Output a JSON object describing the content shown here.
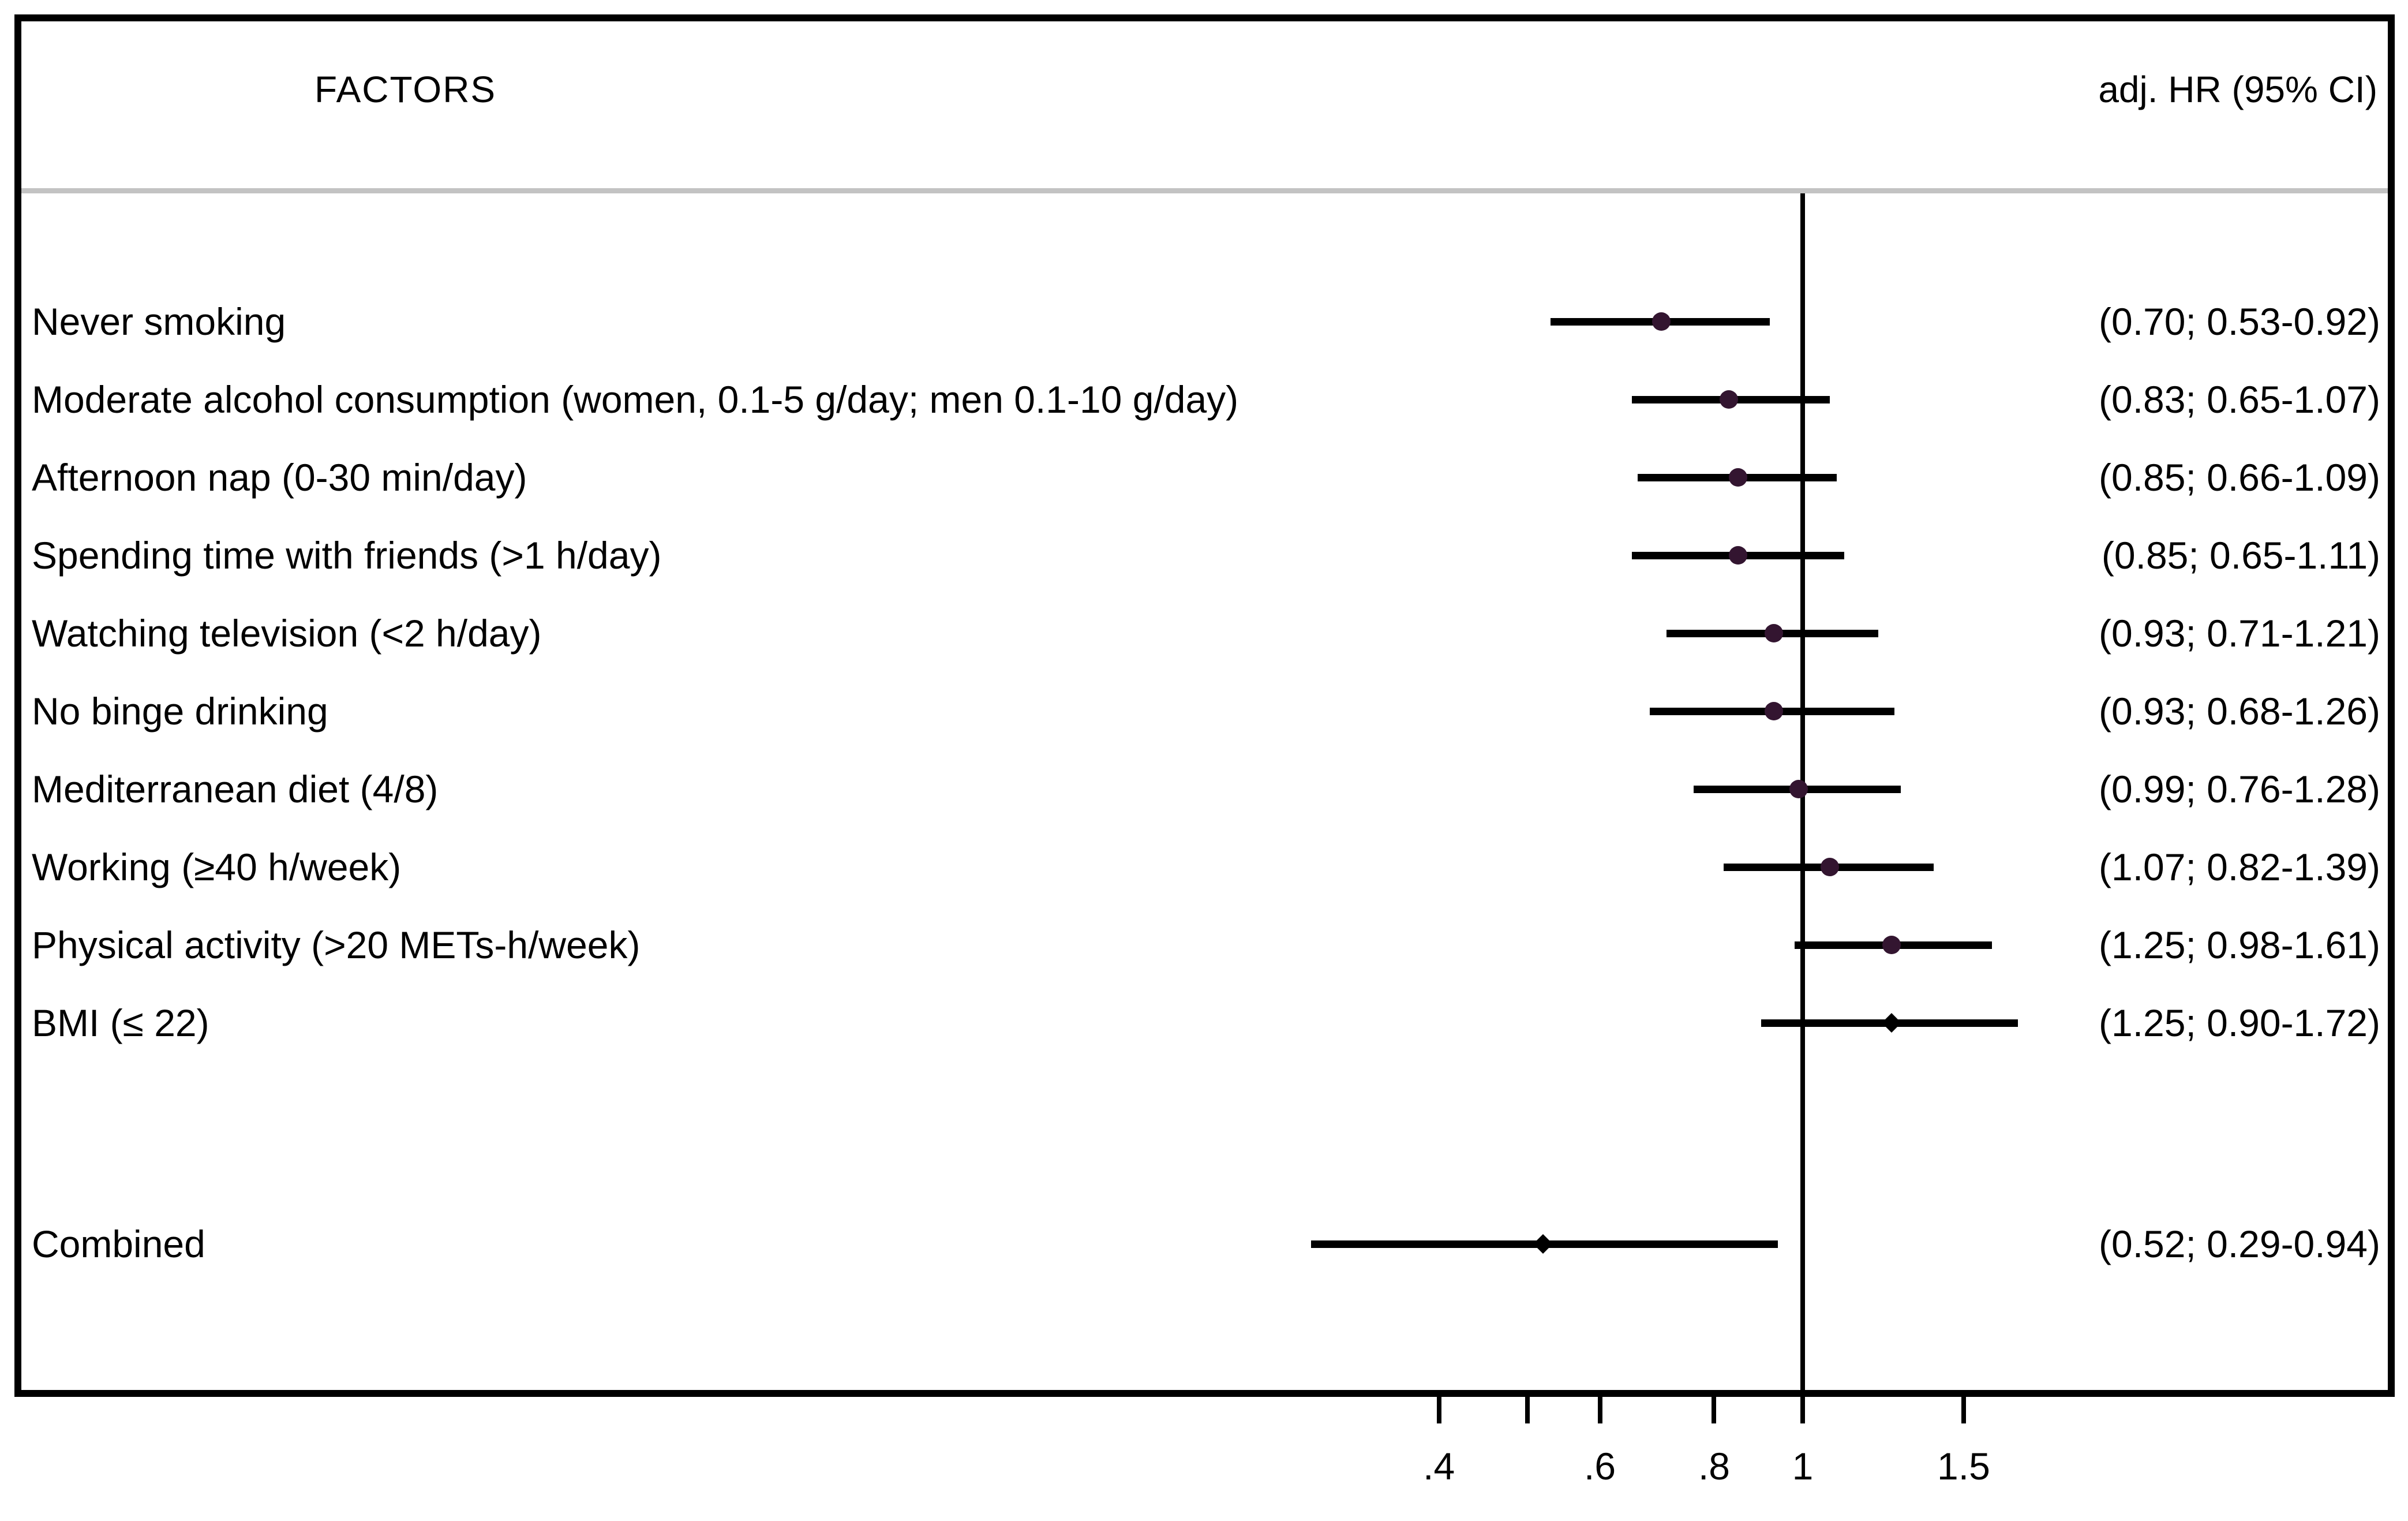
{
  "figure": {
    "header_left": "FACTORS",
    "header_right": "adj. HR (95% CI)"
  },
  "colors": {
    "background": "#ffffff",
    "frame_border": "#000000",
    "header_separator": "#c3c3c3",
    "text": "#000000",
    "ci_line": "#000000",
    "ref_line": "#000000",
    "marker_dot": "#331530",
    "marker_diamond": "#000000"
  },
  "chart_data": {
    "type": "forest",
    "x_scale": "log10",
    "x_axis": {
      "ref_value": 1,
      "ticks": [
        {
          "value": 0.4,
          "label": ".4"
        },
        {
          "value": 0.5,
          "label": ""
        },
        {
          "value": 0.6,
          "label": ".6"
        },
        {
          "value": 0.8,
          "label": ".8"
        },
        {
          "value": 1.0,
          "label": "1"
        },
        {
          "value": 1.5,
          "label": "1.5"
        }
      ]
    },
    "rows": [
      {
        "label": "Never smoking",
        "hr": 0.7,
        "ci_low": 0.53,
        "ci_high": 0.92,
        "ci_text": "(0.70; 0.53-0.92)",
        "marker": "dot"
      },
      {
        "label": "Moderate alcohol consumption (women, 0.1-5 g/day; men 0.1-10 g/day)",
        "hr": 0.83,
        "ci_low": 0.65,
        "ci_high": 1.07,
        "ci_text": "(0.83; 0.65-1.07)",
        "marker": "dot"
      },
      {
        "label": "Afternoon nap (0-30 min/day)",
        "hr": 0.85,
        "ci_low": 0.66,
        "ci_high": 1.09,
        "ci_text": "(0.85; 0.66-1.09)",
        "marker": "dot"
      },
      {
        "label": "Spending time with friends (>1 h/day)",
        "hr": 0.85,
        "ci_low": 0.65,
        "ci_high": 1.11,
        "ci_text": "(0.85; 0.65-1.11)",
        "marker": "dot"
      },
      {
        "label": "Watching television (<2 h/day)",
        "hr": 0.93,
        "ci_low": 0.71,
        "ci_high": 1.21,
        "ci_text": "(0.93; 0.71-1.21)",
        "marker": "dot"
      },
      {
        "label": "No binge drinking",
        "hr": 0.93,
        "ci_low": 0.68,
        "ci_high": 1.26,
        "ci_text": "(0.93; 0.68-1.26)",
        "marker": "dot"
      },
      {
        "label": "Mediterranean diet (4/8)",
        "hr": 0.99,
        "ci_low": 0.76,
        "ci_high": 1.28,
        "ci_text": "(0.99; 0.76-1.28)",
        "marker": "dot"
      },
      {
        "label": "Working (≥40 h/week)",
        "hr": 1.07,
        "ci_low": 0.82,
        "ci_high": 1.39,
        "ci_text": "(1.07; 0.82-1.39)",
        "marker": "dot"
      },
      {
        "label": "Physical activity (>20 METs-h/week)",
        "hr": 1.25,
        "ci_low": 0.98,
        "ci_high": 1.61,
        "ci_text": "(1.25; 0.98-1.61)",
        "marker": "dot"
      },
      {
        "label": "BMI (≤ 22)",
        "hr": 1.25,
        "ci_low": 0.9,
        "ci_high": 1.72,
        "ci_text": "(1.25; 0.90-1.72)",
        "marker": "diamond"
      },
      {
        "label": "Combined",
        "hr": 0.52,
        "ci_low": 0.29,
        "ci_high": 0.94,
        "ci_text": "(0.52; 0.29-0.94)",
        "marker": "diamond",
        "group": "combined"
      }
    ]
  }
}
